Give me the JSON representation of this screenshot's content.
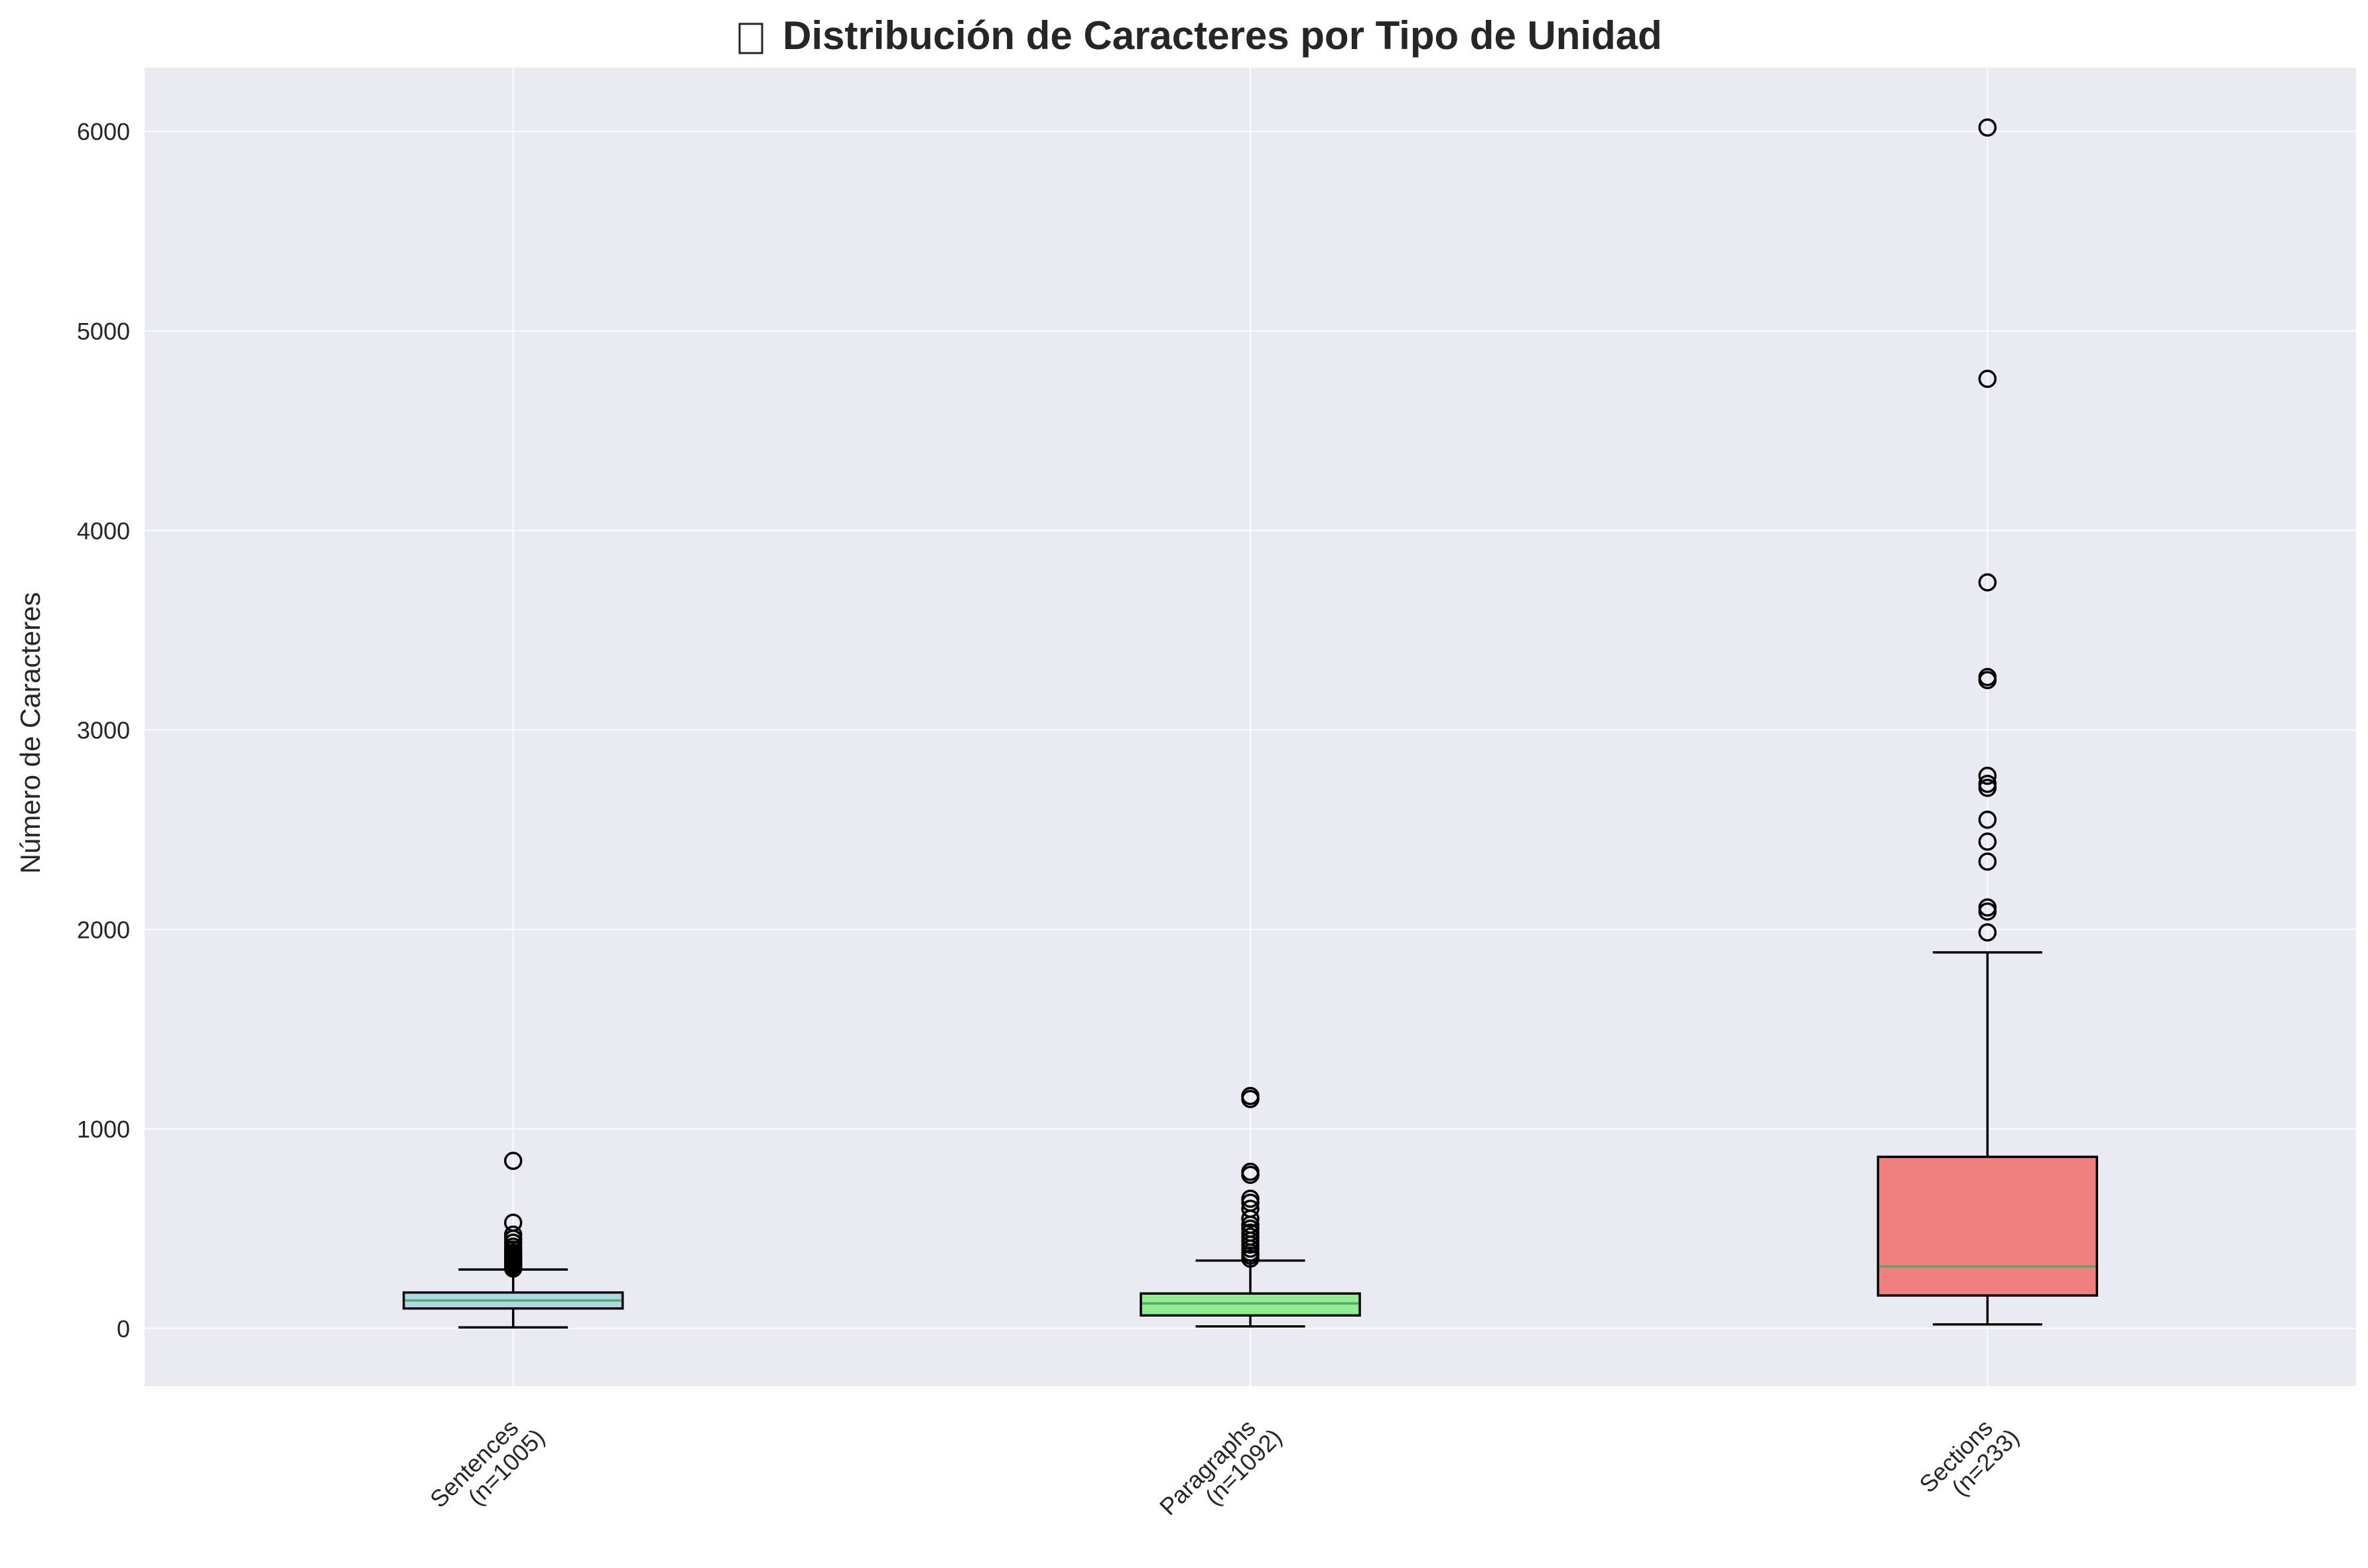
{
  "chart_data": {
    "type": "box",
    "title": "Distribución de Caracteres por Tipo de Unidad",
    "title_icon": "chart-glyph-icon",
    "ylabel": "Número de Caracteres",
    "xlabel": "",
    "ylim": [
      -290,
      6320
    ],
    "yticks": [
      0,
      1000,
      2000,
      3000,
      4000,
      5000,
      6000
    ],
    "grid": true,
    "background": "#eaeaf2",
    "categories": [
      {
        "label_line1": "Sentences",
        "label_line2": "(n=1005)",
        "n": 1005,
        "color": "#add8e6",
        "whisker_low": 5,
        "q1": 100,
        "median": 140,
        "q3": 180,
        "whisker_high": 295,
        "outliers": [
          300,
          310,
          320,
          330,
          340,
          350,
          360,
          370,
          380,
          395,
          410,
          430,
          450,
          470,
          530,
          840
        ]
      },
      {
        "label_line1": "Paragraphs",
        "label_line2": "(n=1092)",
        "n": 1092,
        "color": "#90ee90",
        "whisker_low": 10,
        "q1": 65,
        "median": 125,
        "q3": 175,
        "whisker_high": 340,
        "outliers": [
          350,
          365,
          380,
          400,
          420,
          440,
          460,
          480,
          500,
          520,
          550,
          600,
          630,
          650,
          770,
          785,
          1150,
          1165
        ]
      },
      {
        "label_line1": "Sections",
        "label_line2": "(n=233)",
        "n": 233,
        "color": "#f08080",
        "whisker_low": 20,
        "q1": 165,
        "median": 310,
        "q3": 860,
        "whisker_high": 1885,
        "outliers": [
          1985,
          2090,
          2110,
          2340,
          2440,
          2550,
          2710,
          2730,
          2770,
          3250,
          3265,
          3740,
          4760,
          6020
        ]
      }
    ],
    "median_color": "#55a868",
    "edge_color": "#000000"
  }
}
